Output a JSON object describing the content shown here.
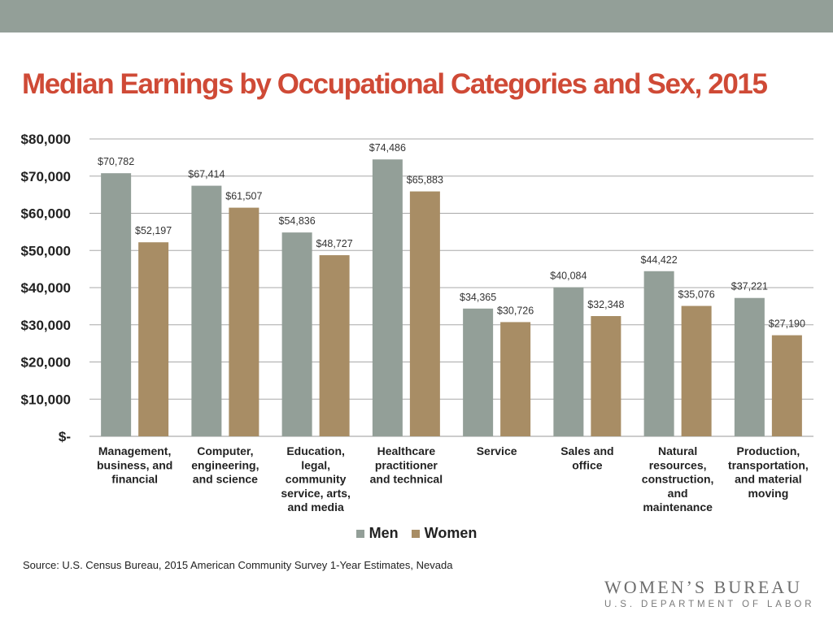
{
  "title": "Median Earnings by Occupational Categories and Sex, 2015",
  "source": "Source: U.S. Census Bureau, 2015 American Community Survey 1-Year Estimates, Nevada",
  "logo": {
    "main": "WOMEN’S BUREAU",
    "sub": "U.S. DEPARTMENT OF LABOR"
  },
  "colors": {
    "topbar": "#939f98",
    "title": "#cf4a36",
    "men": "#939f98",
    "women": "#a88d65"
  },
  "chart_data": {
    "type": "bar",
    "categories": [
      [
        "Management,",
        "business, and",
        "financial"
      ],
      [
        "Computer,",
        "engineering,",
        "and science"
      ],
      [
        "Education,",
        "legal,",
        "community",
        "service, arts,",
        "and media"
      ],
      [
        "Healthcare",
        "practitioner",
        "and technical"
      ],
      [
        "Service"
      ],
      [
        "Sales and",
        "office"
      ],
      [
        "Natural",
        "resources,",
        "construction,",
        "and",
        "maintenance"
      ],
      [
        "Production,",
        "transportation,",
        "and material",
        "moving"
      ]
    ],
    "series": [
      {
        "name": "Men",
        "values": [
          70782,
          67414,
          54836,
          74486,
          34365,
          40084,
          44422,
          37221
        ],
        "labels": [
          "$70,782",
          "$67,414",
          "$54,836",
          "$74,486",
          "$34,365",
          "$40,084",
          "$44,422",
          "$37,221"
        ]
      },
      {
        "name": "Women",
        "values": [
          52197,
          61507,
          48727,
          65883,
          30726,
          32348,
          35076,
          27190
        ],
        "labels": [
          "$52,197",
          "$61,507",
          "$48,727",
          "$65,883",
          "$30,726",
          "$32,348",
          "$35,076",
          "$27,190"
        ]
      }
    ],
    "ylim": [
      0,
      80000
    ],
    "yticks": [
      0,
      10000,
      20000,
      30000,
      40000,
      50000,
      60000,
      70000,
      80000
    ],
    "ytick_labels": [
      "$-",
      "$10,000",
      "$20,000",
      "$30,000",
      "$40,000",
      "$50,000",
      "$60,000",
      "$70,000",
      "$80,000"
    ],
    "grid": true,
    "legend": "bottom"
  }
}
